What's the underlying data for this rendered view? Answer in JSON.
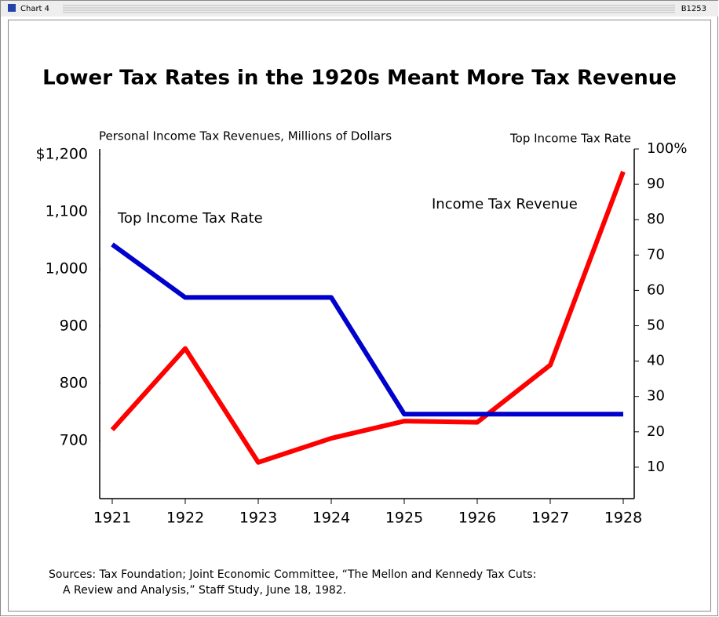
{
  "window": {
    "title": "Chart 4",
    "code": "B1253"
  },
  "chart_data": {
    "type": "line",
    "title": "Lower Tax Rates in the 1920s Meant More Tax Revenue",
    "y_label": "Personal Income Tax Revenues, Millions of Dollars",
    "y2_label": "Top Income Tax Rate",
    "categories": [
      "1921",
      "1922",
      "1923",
      "1924",
      "1925",
      "1926",
      "1927",
      "1928"
    ],
    "series": [
      {
        "name": "Income Tax Revenue",
        "color": "#ff0000",
        "values": [
          719,
          861,
          662,
          704,
          734,
          732,
          832,
          1170
        ]
      },
      {
        "name": "Top Income Tax Rate",
        "color": "#0000cc",
        "axis": "y2",
        "values": [
          73,
          58,
          58,
          58,
          25,
          25,
          25,
          25
        ]
      }
    ],
    "ylim": [
      600,
      1200
    ],
    "yticks": [
      {
        "value": 1200,
        "label": "$1,200"
      },
      {
        "value": 1100,
        "label": "1,100"
      },
      {
        "value": 1000,
        "label": "1,000"
      },
      900,
      800,
      700
    ],
    "y2lim": [
      0,
      100
    ],
    "y2ticks": [
      {
        "value": 100,
        "label": "100%"
      },
      90,
      80,
      70,
      60,
      50,
      40,
      30,
      20,
      10
    ],
    "sources": [
      "Sources:  Tax Foundation; Joint Economic Committee, “The Mellon and Kennedy Tax Cuts:",
      "A Review and Analysis,” Staff Study,  June 18, 1982."
    ]
  }
}
